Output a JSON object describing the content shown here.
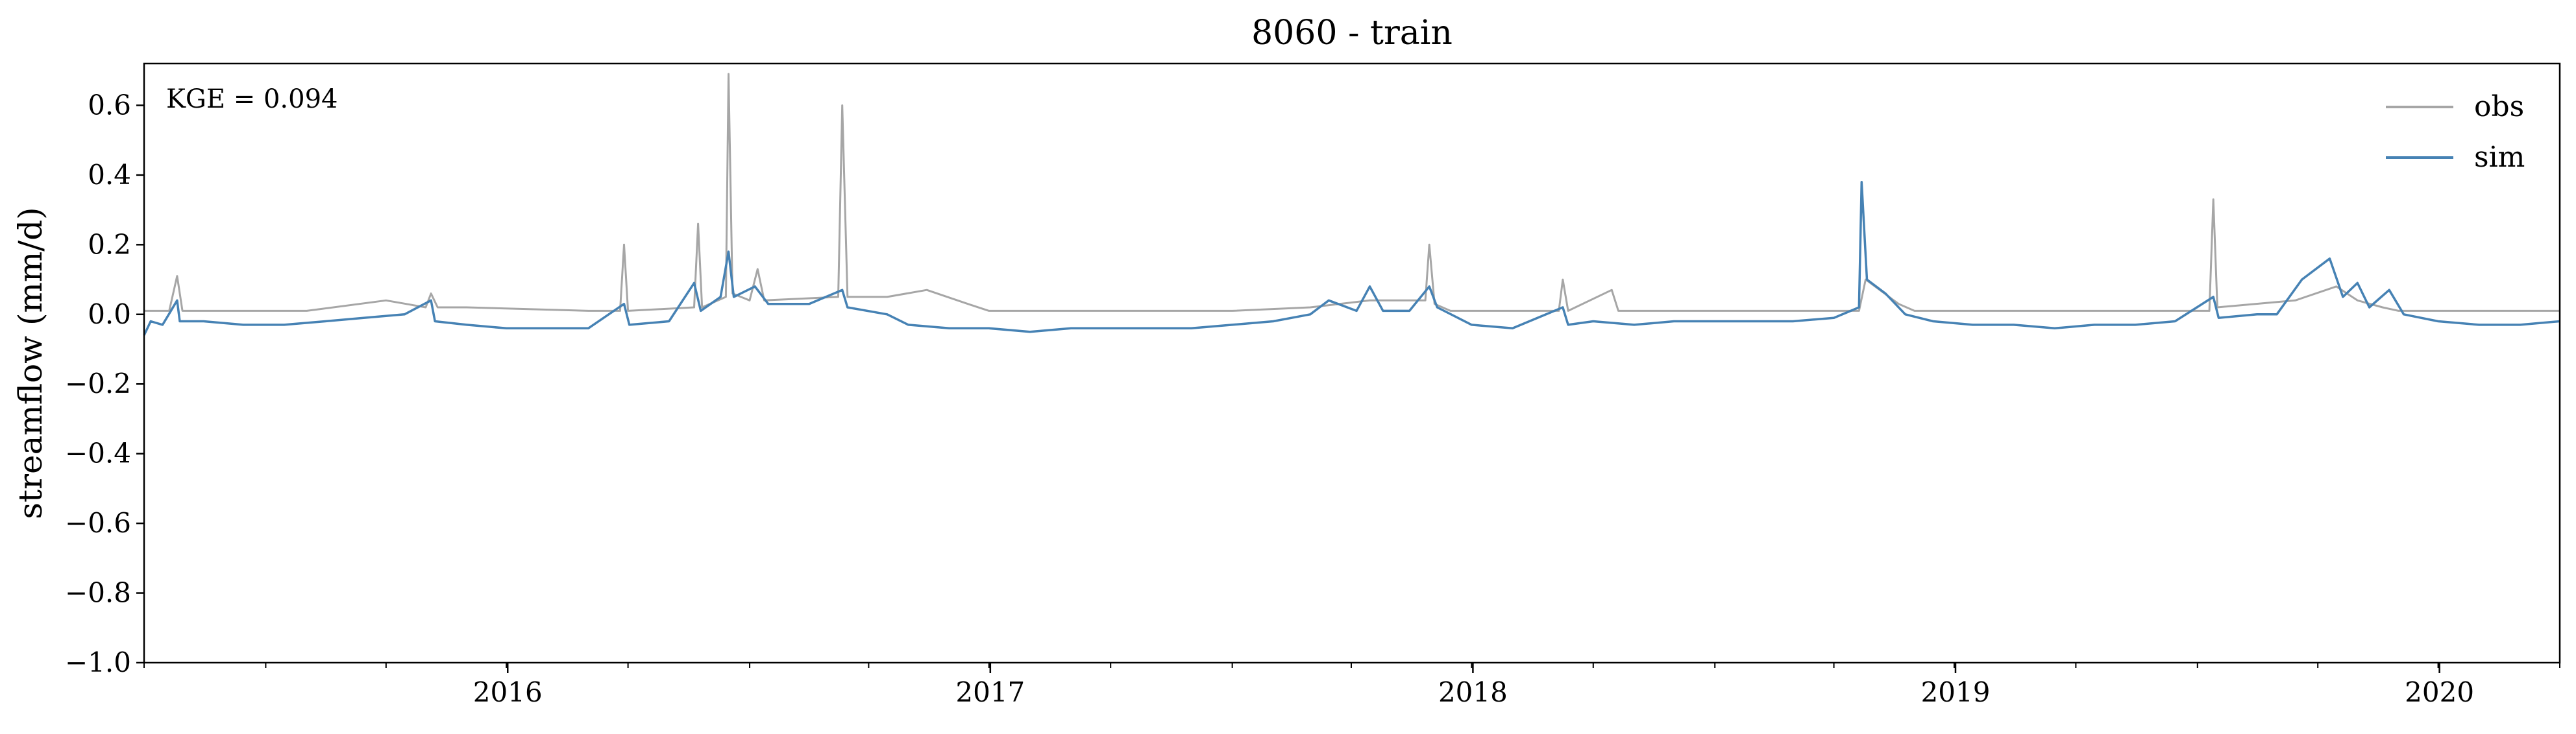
{
  "chart_data": {
    "type": "line",
    "title": "8060 - train",
    "xlabel": "",
    "ylabel": "streamflow (mm/d)",
    "annotation": "KGE = 0.094",
    "xlim": [
      "2015-10-01",
      "2020-10-01"
    ],
    "ylim": [
      -1.0,
      0.72
    ],
    "x_ticks": [
      "2016",
      "2017",
      "2018",
      "2019",
      "2020"
    ],
    "y_ticks": [
      "−1.0",
      "−0.8",
      "−0.6",
      "−0.4",
      "−0.2",
      "0.0",
      "0.2",
      "0.4",
      "0.6"
    ],
    "grid": false,
    "legend_position": "top-right",
    "series": [
      {
        "name": "obs",
        "color": "#a6a6a6",
        "points": [
          [
            "2015-10-01",
            0.01
          ],
          [
            "2015-10-20",
            0.01
          ],
          [
            "2015-10-26",
            0.11
          ],
          [
            "2015-10-30",
            0.01
          ],
          [
            "2016-02-01",
            0.01
          ],
          [
            "2016-04-01",
            0.04
          ],
          [
            "2016-05-01",
            0.02
          ],
          [
            "2016-05-05",
            0.06
          ],
          [
            "2016-05-10",
            0.02
          ],
          [
            "2016-06-01",
            0.02
          ],
          [
            "2016-09-01",
            0.01
          ],
          [
            "2016-09-25",
            0.01
          ],
          [
            "2016-09-28",
            0.2
          ],
          [
            "2016-10-01",
            0.01
          ],
          [
            "2016-11-20",
            0.02
          ],
          [
            "2016-11-23",
            0.26
          ],
          [
            "2016-11-26",
            0.02
          ],
          [
            "2016-12-14",
            0.05
          ],
          [
            "2016-12-16",
            0.69
          ],
          [
            "2016-12-19",
            0.06
          ],
          [
            "2017-01-01",
            0.04
          ],
          [
            "2017-01-07",
            0.13
          ],
          [
            "2017-01-12",
            0.04
          ],
          [
            "2017-03-09",
            0.05
          ],
          [
            "2017-03-12",
            0.6
          ],
          [
            "2017-03-16",
            0.05
          ],
          [
            "2017-04-15",
            0.05
          ],
          [
            "2017-05-15",
            0.07
          ],
          [
            "2017-06-15",
            0.03
          ],
          [
            "2017-07-01",
            0.01
          ],
          [
            "2018-01-01",
            0.01
          ],
          [
            "2018-03-01",
            0.02
          ],
          [
            "2018-04-15",
            0.04
          ],
          [
            "2018-05-27",
            0.04
          ],
          [
            "2018-05-30",
            0.2
          ],
          [
            "2018-06-03",
            0.03
          ],
          [
            "2018-06-15",
            0.01
          ],
          [
            "2018-09-05",
            0.01
          ],
          [
            "2018-09-08",
            0.1
          ],
          [
            "2018-09-12",
            0.01
          ],
          [
            "2018-10-15",
            0.07
          ],
          [
            "2018-10-20",
            0.01
          ],
          [
            "2019-04-20",
            0.01
          ],
          [
            "2019-04-25",
            0.1
          ],
          [
            "2019-05-20",
            0.03
          ],
          [
            "2019-06-01",
            0.01
          ],
          [
            "2020-01-10",
            0.01
          ],
          [
            "2020-01-13",
            0.33
          ],
          [
            "2020-01-16",
            0.02
          ],
          [
            "2020-03-15",
            0.04
          ],
          [
            "2020-04-15",
            0.08
          ],
          [
            "2020-05-01",
            0.04
          ],
          [
            "2020-05-20",
            0.02
          ],
          [
            "2020-06-01",
            0.01
          ],
          [
            "2020-10-01",
            0.01
          ]
        ]
      },
      {
        "name": "sim",
        "color": "#4682b4",
        "points": [
          [
            "2015-10-01",
            -0.06
          ],
          [
            "2015-10-06",
            -0.02
          ],
          [
            "2015-10-15",
            -0.03
          ],
          [
            "2015-10-26",
            0.04
          ],
          [
            "2015-10-28",
            -0.02
          ],
          [
            "2015-11-15",
            -0.02
          ],
          [
            "2015-12-15",
            -0.03
          ],
          [
            "2016-01-15",
            -0.03
          ],
          [
            "2016-02-15",
            -0.02
          ],
          [
            "2016-03-15",
            -0.01
          ],
          [
            "2016-04-15",
            0.0
          ],
          [
            "2016-05-05",
            0.04
          ],
          [
            "2016-05-08",
            -0.02
          ],
          [
            "2016-06-01",
            -0.03
          ],
          [
            "2016-07-01",
            -0.04
          ],
          [
            "2016-08-01",
            -0.04
          ],
          [
            "2016-09-01",
            -0.04
          ],
          [
            "2016-09-28",
            0.03
          ],
          [
            "2016-10-02",
            -0.03
          ],
          [
            "2016-11-01",
            -0.02
          ],
          [
            "2016-11-20",
            0.09
          ],
          [
            "2016-11-25",
            0.01
          ],
          [
            "2016-12-10",
            0.05
          ],
          [
            "2016-12-16",
            0.18
          ],
          [
            "2016-12-20",
            0.05
          ],
          [
            "2017-01-05",
            0.08
          ],
          [
            "2017-01-15",
            0.03
          ],
          [
            "2017-02-15",
            0.03
          ],
          [
            "2017-03-12",
            0.07
          ],
          [
            "2017-03-16",
            0.02
          ],
          [
            "2017-04-15",
            0.0
          ],
          [
            "2017-05-01",
            -0.03
          ],
          [
            "2017-06-01",
            -0.04
          ],
          [
            "2017-07-01",
            -0.04
          ],
          [
            "2017-08-01",
            -0.05
          ],
          [
            "2017-09-01",
            -0.04
          ],
          [
            "2017-10-01",
            -0.04
          ],
          [
            "2017-11-01",
            -0.04
          ],
          [
            "2017-12-01",
            -0.04
          ],
          [
            "2018-01-01",
            -0.03
          ],
          [
            "2018-02-01",
            -0.02
          ],
          [
            "2018-03-01",
            0.0
          ],
          [
            "2018-03-15",
            0.04
          ],
          [
            "2018-04-05",
            0.01
          ],
          [
            "2018-04-15",
            0.08
          ],
          [
            "2018-04-25",
            0.01
          ],
          [
            "2018-05-15",
            0.01
          ],
          [
            "2018-05-30",
            0.08
          ],
          [
            "2018-06-05",
            0.02
          ],
          [
            "2018-07-01",
            -0.03
          ],
          [
            "2018-08-01",
            -0.04
          ],
          [
            "2018-09-08",
            0.02
          ],
          [
            "2018-09-12",
            -0.03
          ],
          [
            "2018-10-01",
            -0.02
          ],
          [
            "2018-11-01",
            -0.03
          ],
          [
            "2018-12-01",
            -0.02
          ],
          [
            "2019-01-01",
            -0.02
          ],
          [
            "2019-02-01",
            -0.02
          ],
          [
            "2019-03-01",
            -0.02
          ],
          [
            "2019-04-01",
            -0.01
          ],
          [
            "2019-04-20",
            0.02
          ],
          [
            "2019-04-22",
            0.38
          ],
          [
            "2019-04-26",
            0.1
          ],
          [
            "2019-05-10",
            0.06
          ],
          [
            "2019-05-25",
            0.0
          ],
          [
            "2019-06-15",
            -0.02
          ],
          [
            "2019-07-15",
            -0.03
          ],
          [
            "2019-08-15",
            -0.03
          ],
          [
            "2019-09-15",
            -0.04
          ],
          [
            "2019-10-15",
            -0.03
          ],
          [
            "2019-11-15",
            -0.03
          ],
          [
            "2019-12-15",
            -0.02
          ],
          [
            "2020-01-13",
            0.05
          ],
          [
            "2020-01-17",
            -0.01
          ],
          [
            "2020-02-15",
            0.0
          ],
          [
            "2020-03-01",
            0.0
          ],
          [
            "2020-03-20",
            0.1
          ],
          [
            "2020-04-10",
            0.16
          ],
          [
            "2020-04-20",
            0.05
          ],
          [
            "2020-05-01",
            0.09
          ],
          [
            "2020-05-10",
            0.02
          ],
          [
            "2020-05-25",
            0.07
          ],
          [
            "2020-06-05",
            0.0
          ],
          [
            "2020-07-01",
            -0.02
          ],
          [
            "2020-08-01",
            -0.03
          ],
          [
            "2020-09-01",
            -0.03
          ],
          [
            "2020-10-01",
            -0.02
          ]
        ]
      }
    ]
  }
}
